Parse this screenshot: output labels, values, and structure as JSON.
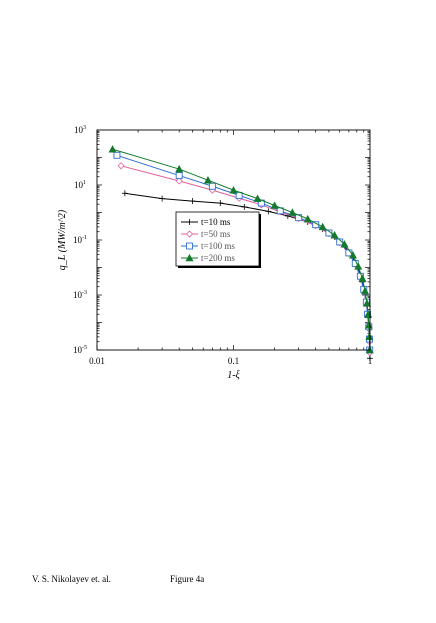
{
  "chart_data": {
    "type": "line",
    "xlabel": "1-ξ",
    "ylabel": "q_L (MW/m^2)",
    "xscale": "log",
    "yscale": "log",
    "xlim": [
      0.01,
      1
    ],
    "ylim": [
      1e-05,
      1000
    ],
    "x_ticks": [
      {
        "value": 0.01,
        "label": "0.01"
      },
      {
        "value": 0.1,
        "label": "0.1"
      },
      {
        "value": 1,
        "label": "1"
      }
    ],
    "y_ticks": [
      {
        "value": 1000,
        "base": "10",
        "exp": "3"
      },
      {
        "value": 10,
        "base": "10",
        "exp": "1"
      },
      {
        "value": 0.1,
        "base": "10",
        "exp": "-1"
      },
      {
        "value": 0.001,
        "base": "10",
        "exp": "-3"
      },
      {
        "value": 1e-05,
        "base": "10",
        "exp": "-5"
      }
    ],
    "grid": false,
    "legend_position": "center",
    "series": [
      {
        "name": "t=10 ms",
        "color": "#000000",
        "marker": "plus",
        "x": [
          0.016,
          0.03,
          0.05,
          0.08,
          0.12,
          0.18,
          0.25,
          0.35,
          0.45,
          0.55,
          0.65,
          0.75,
          0.82,
          0.88,
          0.92,
          0.95,
          0.97,
          0.98,
          0.99,
          0.995,
          0.998
        ],
        "y": [
          5,
          3.2,
          2.6,
          2.2,
          1.6,
          1.1,
          0.75,
          0.45,
          0.25,
          0.13,
          0.06,
          0.022,
          0.009,
          0.003,
          0.001,
          0.0004,
          0.00015,
          6e-05,
          2e-05,
          9e-06,
          5e-06
        ]
      },
      {
        "name": "t=50 ms",
        "color": "#e0609a",
        "marker": "diamond",
        "x": [
          0.015,
          0.04,
          0.07,
          0.11,
          0.16,
          0.22,
          0.3,
          0.4,
          0.5,
          0.6,
          0.7,
          0.78,
          0.85,
          0.9,
          0.94,
          0.96,
          0.98,
          0.99,
          0.995
        ],
        "y": [
          50,
          14,
          6.5,
          3.3,
          1.9,
          1.05,
          0.6,
          0.33,
          0.17,
          0.08,
          0.032,
          0.013,
          0.0045,
          0.0015,
          0.0005,
          0.00018,
          6e-05,
          2e-05,
          8e-06
        ]
      },
      {
        "name": "t=100 ms",
        "color": "#2f6fd6",
        "marker": "square",
        "x": [
          0.014,
          0.04,
          0.07,
          0.11,
          0.16,
          0.22,
          0.3,
          0.4,
          0.5,
          0.6,
          0.7,
          0.78,
          0.85,
          0.9,
          0.94,
          0.96,
          0.98,
          0.99,
          0.995
        ],
        "y": [
          120,
          22,
          9,
          4.2,
          2.2,
          1.15,
          0.65,
          0.36,
          0.18,
          0.085,
          0.034,
          0.014,
          0.0048,
          0.0016,
          0.00055,
          0.0002,
          7e-05,
          2.5e-05,
          1e-05
        ]
      },
      {
        "name": "t=200 ms",
        "color": "#147a2c",
        "marker": "triangle",
        "x": [
          0.013,
          0.04,
          0.065,
          0.1,
          0.15,
          0.2,
          0.27,
          0.35,
          0.45,
          0.55,
          0.65,
          0.75,
          0.82,
          0.88,
          0.92,
          0.95,
          0.97,
          0.98,
          0.99,
          0.995
        ],
        "y": [
          200,
          38,
          15,
          6.5,
          3.2,
          1.8,
          1.0,
          0.58,
          0.3,
          0.15,
          0.07,
          0.028,
          0.011,
          0.004,
          0.0014,
          0.0005,
          0.0002,
          8e-05,
          3e-05,
          1e-05
        ]
      }
    ]
  },
  "footer": {
    "author": "V. S. Nikolayev et. al.",
    "figure": "Figure 4a"
  }
}
